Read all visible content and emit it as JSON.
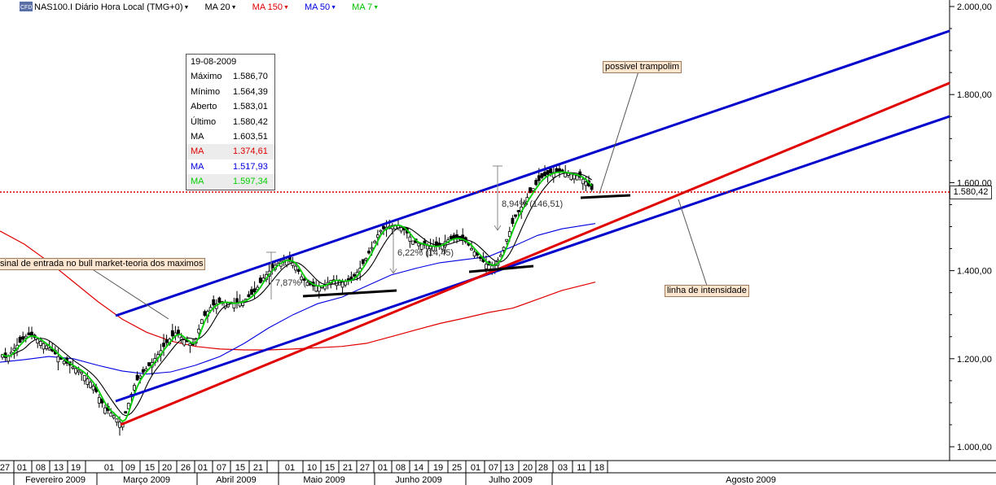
{
  "header": {
    "logo_icon": "cfd-logo-icon",
    "title": "NAS100.I Diário Hora Local (TMG+0)",
    "ma20_label": "MA 20",
    "ma150_label": "MA 150",
    "ma50_label": "MA 50",
    "ma7_label": "MA 7"
  },
  "tooltip": {
    "date": "19-08-2009",
    "rows": [
      {
        "label": "Máximo",
        "value": "1.586,70",
        "color": "#000000"
      },
      {
        "label": "Mínimo",
        "value": "1.564,39",
        "color": "#000000"
      },
      {
        "label": "Aberto",
        "value": "1.583,01",
        "color": "#000000"
      },
      {
        "label": "Último",
        "value": "1.580,42",
        "color": "#000000"
      },
      {
        "label": "MA",
        "value": "1.603,51",
        "color": "#000000"
      },
      {
        "label": "MA",
        "value": "1.374,61",
        "color": "#e00000"
      },
      {
        "label": "MA",
        "value": "1.517,93",
        "color": "#0000e0"
      },
      {
        "label": "MA",
        "value": "1.597,34",
        "color": "#00d000"
      }
    ]
  },
  "annotations": {
    "possivel_trampolim": "possivel trampolim",
    "linha_intensidade": "linha de intensidade",
    "sinal_entrada": "sinal de entrada no bull market-teoria dos maximos",
    "pct_march": "7,87% (1",
    "pct_june": "6,22% (1",
    "pct_june_tail": "4,45)",
    "pct_july": "8,94% (146,51)"
  },
  "last_price": "1.580,42",
  "chart_data": {
    "type": "candlestick",
    "ylim": [
      1000,
      2000
    ],
    "yticks": [
      "1.000,00",
      "1.200,00",
      "1.400,00",
      "1.600,00",
      "1.800,00",
      "2.000,00"
    ],
    "yticks_values": [
      1000,
      1200,
      1400,
      1600,
      1800,
      2000
    ],
    "x_day_labels": [
      "27",
      "01",
      "08",
      "13",
      "19",
      "01",
      "09",
      "15",
      "20",
      "26",
      "01",
      "07",
      "15",
      "21",
      "01",
      "10",
      "15",
      "21",
      "27",
      "01",
      "08",
      "14",
      "19",
      "25",
      "01",
      "07",
      "13",
      "20",
      "28",
      "03",
      "11",
      "18"
    ],
    "x_month_labels": [
      "Fevereiro 2009",
      "Março 2009",
      "Abril 2009",
      "Maio 2009",
      "Junho 2009",
      "Julho 2009",
      "Agosto 2009"
    ],
    "ohlc_summary": {
      "high": 1586.7,
      "low": 1564.39,
      "open": 1583.01,
      "close": 1580.42
    },
    "colors": {
      "ma20": "#000000",
      "ma150": "#e00000",
      "ma50": "#0000e0",
      "ma7": "#00d000",
      "channel": "#0000cc",
      "trend_red": "#e00000",
      "last_line": "#cc0000"
    },
    "series": [
      {
        "name": "MA 20",
        "type": "line",
        "color": "#000000"
      },
      {
        "name": "MA 150",
        "type": "line",
        "color": "#e00000"
      },
      {
        "name": "MA 50",
        "type": "line",
        "color": "#0000e0"
      },
      {
        "name": "MA 7",
        "type": "line",
        "color": "#00d000"
      }
    ]
  }
}
